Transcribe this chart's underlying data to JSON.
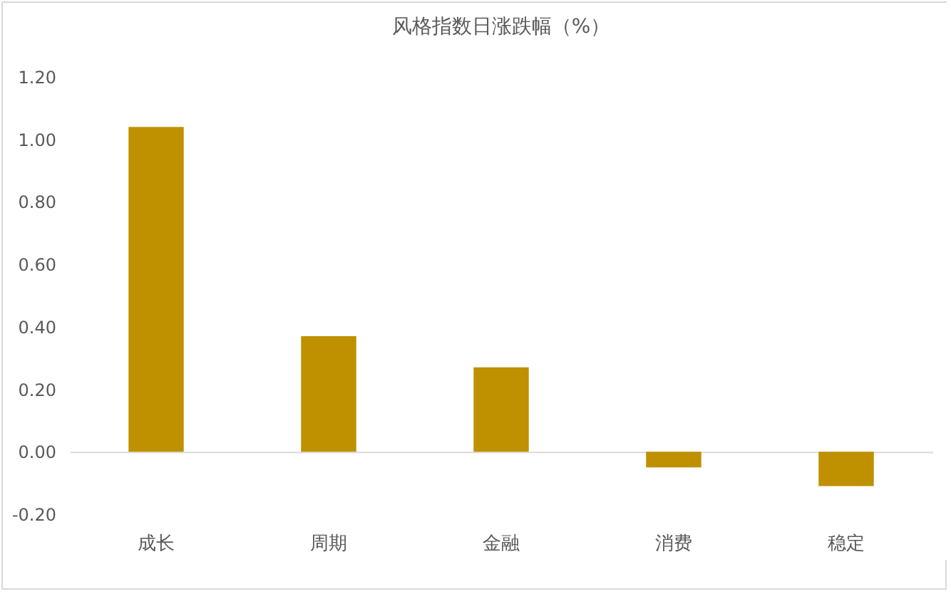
{
  "chart_data": {
    "type": "bar",
    "title": "风格指数日涨跌幅（%）",
    "categories": [
      "成长",
      "周期",
      "金融",
      "消费",
      "稳定"
    ],
    "values": [
      1.04,
      0.37,
      0.27,
      -0.05,
      -0.11
    ],
    "color": "#bf9000",
    "ylim": [
      -0.2,
      1.2
    ],
    "yticks": [
      {
        "value": -0.2,
        "label": "-0.20"
      },
      {
        "value": 0,
        "label": "0.00"
      },
      {
        "value": 0.2,
        "label": "0.20"
      },
      {
        "value": 0.4,
        "label": "0.40"
      },
      {
        "value": 0.6,
        "label": "0.60"
      },
      {
        "value": 0.8,
        "label": "0.80"
      },
      {
        "value": 1.0,
        "label": "1.00"
      },
      {
        "value": 1.2,
        "label": "1.20"
      }
    ]
  }
}
